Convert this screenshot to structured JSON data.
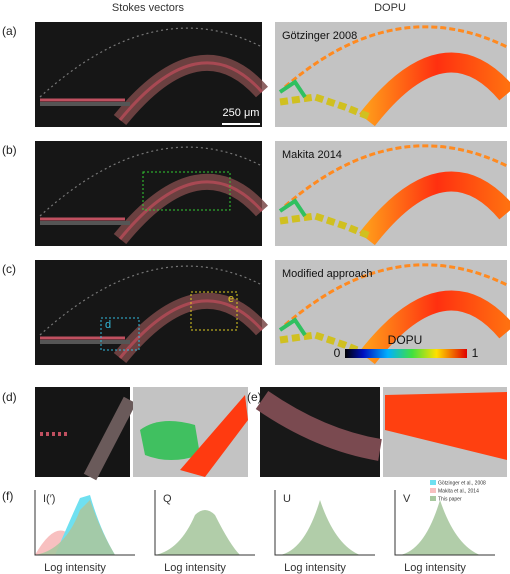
{
  "column_headers": [
    "Stokes vectors",
    "DOPU"
  ],
  "rows": [
    {
      "label": "(a)",
      "method": "Götzinger 2008",
      "scale_bar": "250 μm"
    },
    {
      "label": "(b)",
      "method": "Makita 2014"
    },
    {
      "label": "(c)",
      "method": "Modified approach",
      "boxes": [
        "d",
        "e"
      ]
    }
  ],
  "colorbar": {
    "title": "DOPU",
    "min": 0,
    "max": 1
  },
  "zoom_panels": [
    "(d)",
    "(e)"
  ],
  "histograms": {
    "label": "(f)",
    "panels": [
      {
        "title": "I(′)",
        "xlabel": "Log intensity"
      },
      {
        "title": "Q",
        "xlabel": "Log intensity"
      },
      {
        "title": "U",
        "xlabel": "Log intensity"
      },
      {
        "title": "V",
        "xlabel": "Log intensity"
      }
    ],
    "legend": [
      "Götzinger et al., 2008",
      "Makita et al., 2014",
      "This paper"
    ]
  }
}
